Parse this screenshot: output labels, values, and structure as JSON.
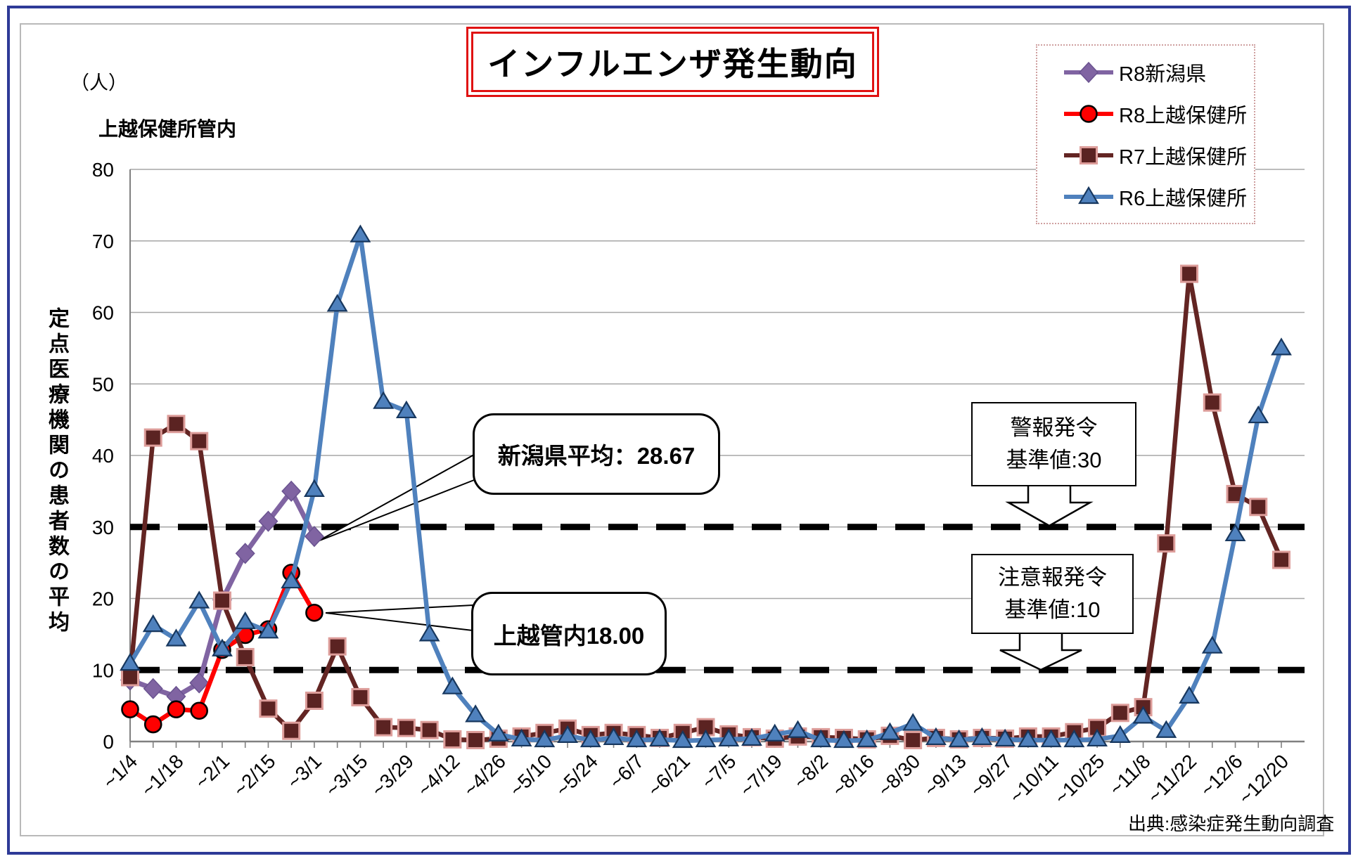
{
  "title": "インフルエンザ発生動向",
  "unit_label": "（人）",
  "subtitle": "上越保健所管内",
  "y_axis_title": "定点医療機関の患者数の平均",
  "source": "出典:感染症発生動向調査",
  "colors": {
    "frame_blue": "#2e3a97",
    "grid": "#a6a6a6",
    "axis": "#808080",
    "threshold": "#000000",
    "title_border": "#e01212",
    "legend_border": "#cfa0a0"
  },
  "legend": [
    {
      "label": "R8新潟県",
      "color": "#8064A2",
      "marker": "diamond"
    },
    {
      "label": "R8上越保健所",
      "color": "#FF0000",
      "marker": "circle"
    },
    {
      "label": "R7上越保健所",
      "color": "#632523",
      "marker": "square"
    },
    {
      "label": "R6上越保健所",
      "color": "#4F81BD",
      "marker": "triangle"
    }
  ],
  "callouts": {
    "niigata_avg": "新潟県平均：28.67",
    "joetsu_avg": "上越管内18.00",
    "alert_line1": "警報発令",
    "alert_line2": "基準値:30",
    "caution_line1": "注意報発令",
    "caution_line2": "基準値:10"
  },
  "chart_data": {
    "type": "line",
    "title": "インフルエンザ発生動向",
    "ylabel": "定点医療機関の患者数の平均",
    "unit": "人",
    "ylim": [
      0,
      80
    ],
    "y_ticks": [
      0,
      10,
      20,
      30,
      40,
      50,
      60,
      70,
      80
    ],
    "grid": true,
    "legend_position": "top-right",
    "x_labels": [
      "~1/4",
      "~1/18",
      "~2/1",
      "~2/15",
      "~3/1",
      "~3/15",
      "~3/29",
      "~4/12",
      "~4/26",
      "~5/10",
      "~5/24",
      "~6/7",
      "~6/21",
      "~7/5",
      "~7/19",
      "~8/2",
      "~8/16",
      "~8/30",
      "~9/13",
      "~9/27",
      "~10/11",
      "~10/25",
      "~11/8",
      "~11/22",
      "~12/6",
      "~12/20"
    ],
    "weeks_per_label": 2,
    "thresholds": [
      {
        "label": "警報発令基準値",
        "value": 30
      },
      {
        "label": "注意報発令基準値",
        "value": 10
      }
    ],
    "annotations": [
      {
        "text": "新潟県平均：28.67",
        "points_to_series": "R8新潟県",
        "value": 28.67
      },
      {
        "text": "上越管内18.00",
        "points_to_series": "R8上越保健所",
        "value": 18.0
      }
    ],
    "series": [
      {
        "name": "R8新潟県",
        "color": "#8064A2",
        "marker": "diamond",
        "values": [
          8.6,
          7.4,
          6.3,
          8.2,
          19.8,
          26.3,
          30.8,
          35.0,
          28.67
        ]
      },
      {
        "name": "R8上越保健所",
        "color": "#FF0000",
        "marker": "circle",
        "values": [
          4.5,
          2.4,
          4.5,
          4.3,
          12.8,
          14.9,
          15.7,
          23.6,
          18.0
        ]
      },
      {
        "name": "R7上越保健所",
        "color": "#632523",
        "marker": "square",
        "values": [
          9.0,
          42.5,
          44.4,
          42.0,
          19.7,
          11.8,
          4.6,
          1.5,
          5.7,
          13.3,
          6.2,
          2.0,
          1.9,
          1.6,
          0.3,
          0.2,
          0.4,
          0.7,
          1.2,
          1.8,
          0.9,
          1.2,
          0.9,
          0.5,
          1.2,
          2.0,
          1.0,
          0.6,
          0.4,
          0.7,
          0.6,
          0.5,
          0.3,
          0.8,
          0.2,
          0.5,
          0.3,
          0.5,
          0.4,
          0.7,
          0.7,
          1.3,
          1.9,
          4.0,
          4.8,
          27.7,
          65.4,
          47.4,
          34.6,
          32.8,
          25.4
        ]
      },
      {
        "name": "R6上越保健所",
        "color": "#4F81BD",
        "marker": "triangle",
        "values": [
          10.9,
          16.3,
          14.3,
          19.6,
          12.9,
          16.7,
          15.4,
          22.4,
          35.2,
          61.1,
          70.8,
          47.5,
          46.2,
          15.0,
          7.6,
          3.7,
          1.0,
          0.3,
          0.2,
          0.8,
          0.2,
          0.5,
          0.2,
          0.3,
          0.1,
          0.2,
          0.3,
          0.4,
          1.0,
          1.5,
          0.2,
          0.1,
          0.2,
          1.2,
          2.5,
          0.5,
          0.2,
          0.5,
          0.3,
          0.2,
          0.2,
          0.2,
          0.3,
          0.8,
          3.5,
          1.5,
          6.3,
          13.3,
          29.0,
          45.5,
          55.0
        ]
      }
    ]
  }
}
